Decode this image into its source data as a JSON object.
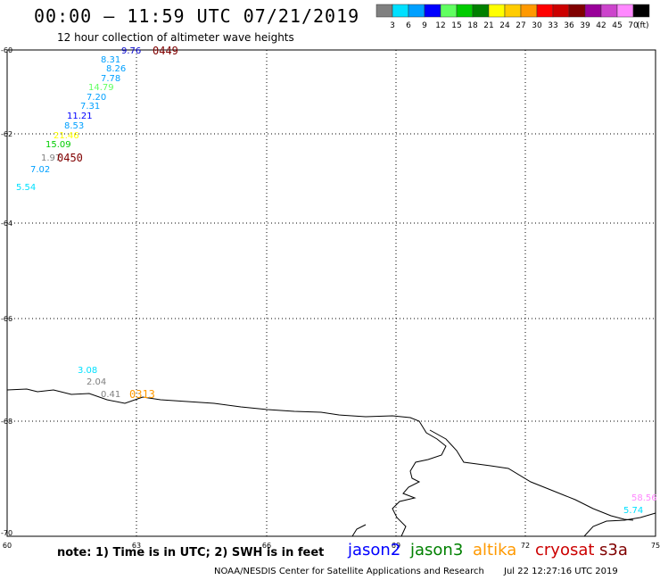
{
  "header": {
    "title": "00:00 – 11:59 UTC 07/21/2019",
    "subtitle": "12 hour collection of altimeter wave heights"
  },
  "colorbar": {
    "colors": [
      "#808080",
      "#00e0ff",
      "#00a0ff",
      "#0000ff",
      "#60ff60",
      "#00cc00",
      "#008000",
      "#ffff00",
      "#ffcc00",
      "#ff9900",
      "#ff0000",
      "#cc0000",
      "#800000",
      "#990099",
      "#cc44cc",
      "#ff88ff",
      "#000000"
    ],
    "labels": [
      "3",
      "6",
      "9",
      "12",
      "15",
      "18",
      "21",
      "24",
      "27",
      "30",
      "33",
      "36",
      "39",
      "42",
      "45",
      "70"
    ],
    "unit": "(ft)"
  },
  "axes": {
    "x_ticks": [
      "60",
      "63",
      "66",
      "69",
      "72",
      "75"
    ],
    "y_ticks": [
      "-60",
      "-62",
      "-64",
      "-66",
      "-68",
      "-70"
    ]
  },
  "observations": [
    {
      "text": "9.76",
      "color": "#0000cc"
    },
    {
      "text": "8.31",
      "color": "#00a0ff"
    },
    {
      "text": "8.26",
      "color": "#00a0ff"
    },
    {
      "text": "7.78",
      "color": "#00a0ff"
    },
    {
      "text": "14.79",
      "color": "#60ff60"
    },
    {
      "text": "7.20",
      "color": "#00a0ff"
    },
    {
      "text": "7.31",
      "color": "#00a0ff"
    },
    {
      "text": "11.21",
      "color": "#0000ff"
    },
    {
      "text": "8.53",
      "color": "#00a0ff"
    },
    {
      "text": "21.46",
      "color": "#ffff00"
    },
    {
      "text": "15.09",
      "color": "#00cc00"
    },
    {
      "text": "1.97",
      "color": "#808080"
    },
    {
      "text": "7.02",
      "color": "#00a0ff"
    },
    {
      "text": "5.54",
      "color": "#00e0ff"
    },
    {
      "text": "3.08",
      "color": "#00e0ff"
    },
    {
      "text": "2.04",
      "color": "#808080"
    },
    {
      "text": "0.41",
      "color": "#808080"
    },
    {
      "text": "58.56",
      "color": "#ff88ff"
    },
    {
      "text": "5.74",
      "color": "#00e0ff"
    }
  ],
  "pass_times": [
    {
      "text": "0449",
      "color": "#800000"
    },
    {
      "text": "0450",
      "color": "#800000"
    },
    {
      "text": "0313",
      "color": "#ff9900"
    }
  ],
  "footer": {
    "note": "note: 1) Time is in UTC; 2) SWH is in feet",
    "satellites": [
      {
        "name": "jason2",
        "color": "#0000ff"
      },
      {
        "name": "jason3",
        "color": "#008000"
      },
      {
        "name": "altika",
        "color": "#ff9900"
      },
      {
        "name": "cryosat",
        "color": "#cc0000"
      },
      {
        "name": "s3a",
        "color": "#800000"
      }
    ],
    "credit": "NOAA/NESDIS Center for Satellite Applications and Research",
    "generated": "Jul 22 12:27:16 UTC 2019"
  }
}
